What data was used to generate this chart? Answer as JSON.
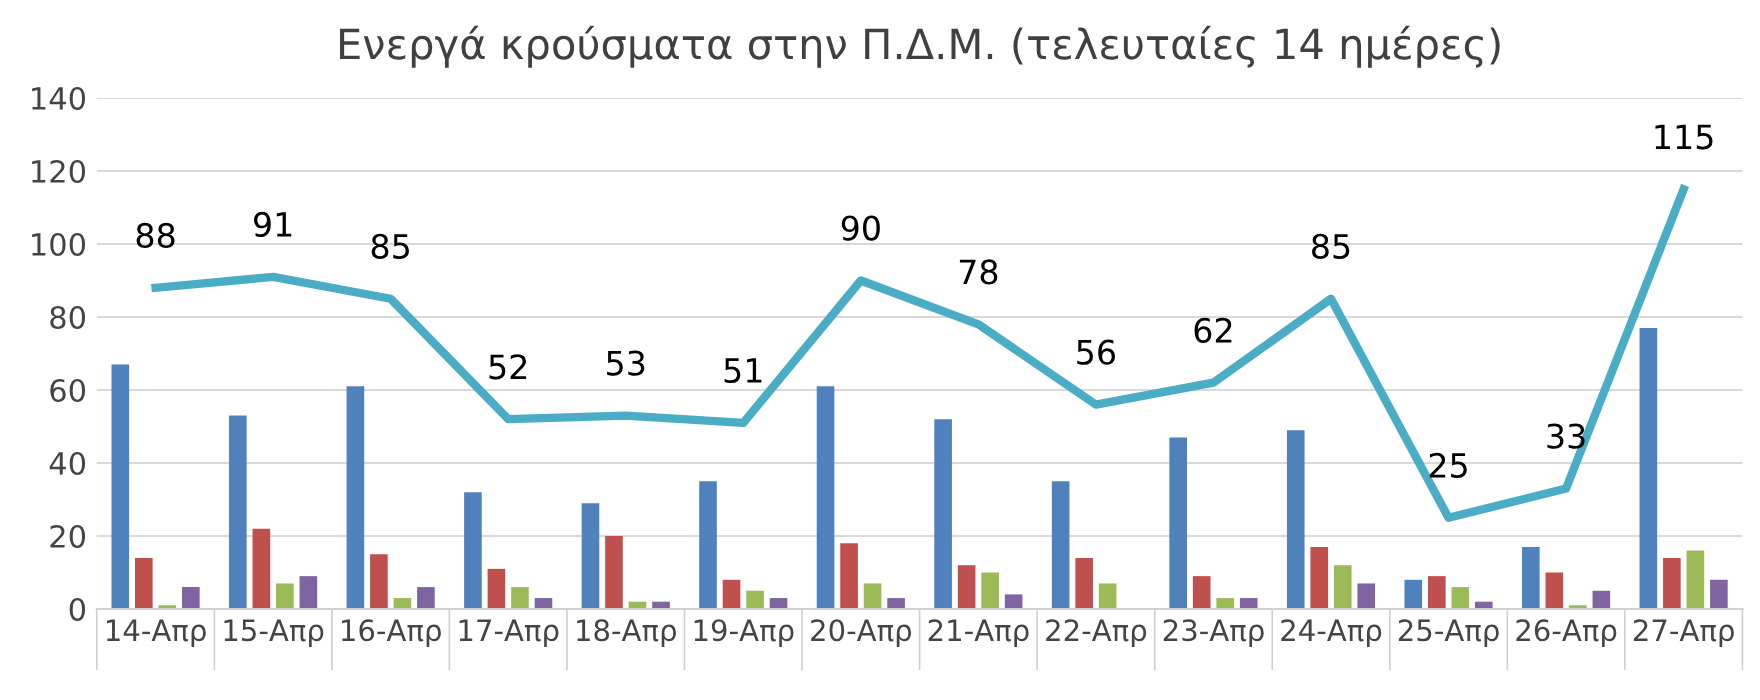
{
  "chart_data": {
    "type": "bar",
    "title": "Ενεργά κρούσματα στην Π.Δ.Μ. (τελευταίες 14 ημέρες)",
    "categories": [
      "14-Απρ",
      "15-Απρ",
      "16-Απρ",
      "17-Απρ",
      "18-Απρ",
      "19-Απρ",
      "20-Απρ",
      "21-Απρ",
      "22-Απρ",
      "23-Απρ",
      "24-Απρ",
      "25-Απρ",
      "26-Απρ",
      "27-Απρ"
    ],
    "series": [
      {
        "color": "#4f81bd",
        "values": [
          67,
          53,
          61,
          32,
          29,
          35,
          61,
          52,
          35,
          47,
          49,
          8,
          17,
          77
        ]
      },
      {
        "color": "#c0504d",
        "values": [
          14,
          22,
          15,
          11,
          20,
          8,
          18,
          12,
          14,
          9,
          17,
          9,
          10,
          14
        ]
      },
      {
        "color": "#9bbb59",
        "values": [
          1,
          7,
          3,
          6,
          2,
          5,
          7,
          10,
          7,
          3,
          12,
          6,
          1,
          16
        ]
      },
      {
        "color": "#8064a2",
        "values": [
          6,
          9,
          6,
          3,
          2,
          3,
          3,
          4,
          0,
          3,
          7,
          2,
          5,
          8
        ]
      },
      {
        "type": "line",
        "color": "#4bacc6",
        "values": [
          88,
          91,
          85,
          52,
          53,
          51,
          90,
          78,
          56,
          62,
          85,
          25,
          33,
          115
        ],
        "data_labels": true
      }
    ],
    "ylim": [
      0,
      140
    ],
    "yticks": [
      0,
      20,
      40,
      60,
      80,
      100,
      120,
      140
    ],
    "grid": "y",
    "legend": false
  }
}
